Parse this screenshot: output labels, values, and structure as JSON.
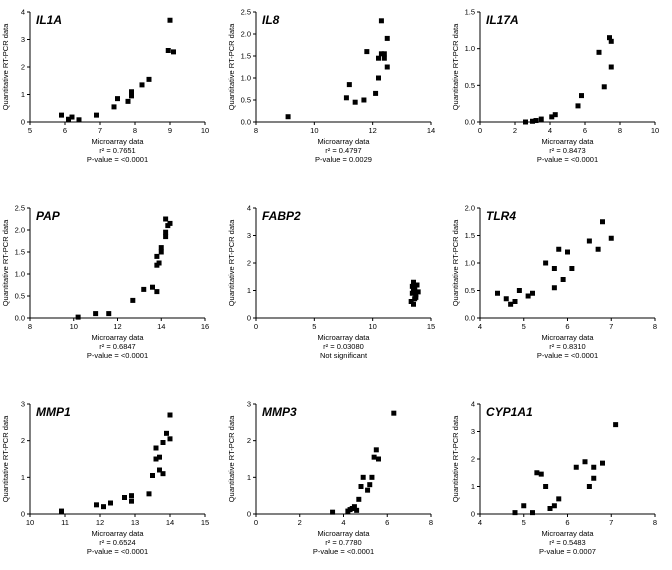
{
  "shared": {
    "ylabel": "Quantitative RT-PCR data",
    "xlabel": "Microarray data"
  },
  "chart_data": [
    {
      "type": "scatter",
      "title": "IL1A",
      "xlabel": "Microarray data",
      "ylabel": "Quantitative RT-PCR data",
      "xlim": [
        5,
        10
      ],
      "ylim": [
        0,
        4
      ],
      "xticks": [
        "5",
        "6",
        "7",
        "8",
        "9",
        "10"
      ],
      "yticks": [
        "0",
        "1",
        "2",
        "3",
        "4"
      ],
      "stats": [
        "r² = 0.7651",
        "P-value = <0.0001"
      ],
      "points": [
        [
          5.9,
          0.25
        ],
        [
          6.1,
          0.1
        ],
        [
          6.2,
          0.18
        ],
        [
          6.4,
          0.08
        ],
        [
          6.9,
          0.25
        ],
        [
          7.4,
          0.55
        ],
        [
          7.5,
          0.85
        ],
        [
          7.8,
          0.75
        ],
        [
          7.9,
          0.95
        ],
        [
          7.9,
          1.1
        ],
        [
          8.2,
          1.35
        ],
        [
          8.4,
          1.55
        ],
        [
          8.95,
          2.6
        ],
        [
          9.1,
          2.55
        ],
        [
          9.0,
          3.7
        ]
      ]
    },
    {
      "type": "scatter",
      "title": "IL8",
      "xlabel": "Microarray data",
      "ylabel": "Quantitative RT-PCR data",
      "xlim": [
        8,
        14
      ],
      "ylim": [
        0,
        2.5
      ],
      "xticks": [
        "8",
        "10",
        "12",
        "14"
      ],
      "yticks": [
        "0.0",
        "0.5",
        "1.0",
        "1.5",
        "2.0",
        "2.5"
      ],
      "stats": [
        "r² = 0.4797",
        "P-value = 0.0029"
      ],
      "points": [
        [
          9.1,
          0.12
        ],
        [
          11.1,
          0.55
        ],
        [
          11.2,
          0.85
        ],
        [
          11.4,
          0.45
        ],
        [
          11.7,
          0.5
        ],
        [
          11.8,
          1.6
        ],
        [
          12.1,
          0.65
        ],
        [
          12.2,
          1.0
        ],
        [
          12.2,
          1.45
        ],
        [
          12.3,
          1.55
        ],
        [
          12.4,
          1.55
        ],
        [
          12.4,
          1.45
        ],
        [
          12.5,
          1.9
        ],
        [
          12.3,
          2.3
        ],
        [
          12.5,
          1.25
        ]
      ]
    },
    {
      "type": "scatter",
      "title": "IL17A",
      "xlabel": "Microarray data",
      "ylabel": "Quantitative RT-PCR data",
      "xlim": [
        0,
        10
      ],
      "ylim": [
        0,
        1.5
      ],
      "xticks": [
        "0",
        "2",
        "4",
        "6",
        "8",
        "10"
      ],
      "yticks": [
        "0.0",
        "0.5",
        "1.0",
        "1.5"
      ],
      "stats": [
        "r² = 0.8473",
        "P-value = <0.0001"
      ],
      "points": [
        [
          2.6,
          0.0
        ],
        [
          3.0,
          0.01
        ],
        [
          3.2,
          0.02
        ],
        [
          3.5,
          0.04
        ],
        [
          4.1,
          0.07
        ],
        [
          4.3,
          0.1
        ],
        [
          5.6,
          0.22
        ],
        [
          5.8,
          0.36
        ],
        [
          6.8,
          0.95
        ],
        [
          7.1,
          0.48
        ],
        [
          7.5,
          0.75
        ],
        [
          7.4,
          1.15
        ],
        [
          7.5,
          1.1
        ]
      ]
    },
    {
      "type": "scatter",
      "title": "PAP",
      "xlabel": "Microarray data",
      "ylabel": "Quantitative RT-PCR data",
      "xlim": [
        8,
        16
      ],
      "ylim": [
        0,
        2.5
      ],
      "xticks": [
        "8",
        "10",
        "12",
        "14",
        "16"
      ],
      "yticks": [
        "0.0",
        "0.5",
        "1.0",
        "1.5",
        "2.0",
        "2.5"
      ],
      "stats": [
        "r² = 0.6847",
        "P-value = <0.0001"
      ],
      "points": [
        [
          10.2,
          0.02
        ],
        [
          11.0,
          0.1
        ],
        [
          11.6,
          0.1
        ],
        [
          12.7,
          0.4
        ],
        [
          13.2,
          0.65
        ],
        [
          13.6,
          0.7
        ],
        [
          13.8,
          0.6
        ],
        [
          13.8,
          1.2
        ],
        [
          13.9,
          1.25
        ],
        [
          13.8,
          1.4
        ],
        [
          14.0,
          1.5
        ],
        [
          14.0,
          1.6
        ],
        [
          14.2,
          1.85
        ],
        [
          14.2,
          1.95
        ],
        [
          14.3,
          2.1
        ],
        [
          14.4,
          2.15
        ],
        [
          14.2,
          2.25
        ]
      ]
    },
    {
      "type": "scatter",
      "title": "FABP2",
      "xlabel": "Microarray data",
      "ylabel": "Quantitative RT-PCR data",
      "xlim": [
        0,
        15
      ],
      "ylim": [
        0,
        4
      ],
      "xticks": [
        "0",
        "5",
        "10",
        "15"
      ],
      "yticks": [
        "0",
        "1",
        "2",
        "3",
        "4"
      ],
      "stats": [
        "r² = 0.03080",
        "Not significant"
      ],
      "points": [
        [
          13.3,
          0.6
        ],
        [
          13.4,
          0.9
        ],
        [
          13.5,
          1.3
        ],
        [
          13.6,
          1.1
        ],
        [
          13.5,
          0.5
        ],
        [
          13.7,
          0.75
        ],
        [
          13.8,
          1.2
        ],
        [
          13.5,
          1.0
        ],
        [
          13.6,
          0.7
        ],
        [
          13.4,
          1.15
        ],
        [
          13.7,
          0.85
        ],
        [
          13.9,
          0.95
        ],
        [
          13.6,
          1.05
        ]
      ]
    },
    {
      "type": "scatter",
      "title": "TLR4",
      "xlabel": "Microarray data",
      "ylabel": "Quantitative RT-PCR data",
      "xlim": [
        4,
        8
      ],
      "ylim": [
        0,
        2.0
      ],
      "xticks": [
        "4",
        "5",
        "6",
        "7",
        "8"
      ],
      "yticks": [
        "0.0",
        "0.5",
        "1.0",
        "1.5",
        "2.0"
      ],
      "stats": [
        "r² = 0.8310",
        "P-value = <0.0001"
      ],
      "points": [
        [
          4.4,
          0.45
        ],
        [
          4.6,
          0.35
        ],
        [
          4.7,
          0.25
        ],
        [
          4.8,
          0.3
        ],
        [
          4.9,
          0.5
        ],
        [
          5.1,
          0.4
        ],
        [
          5.2,
          0.45
        ],
        [
          5.5,
          1.0
        ],
        [
          5.7,
          0.55
        ],
        [
          5.7,
          0.9
        ],
        [
          5.8,
          1.25
        ],
        [
          5.9,
          0.7
        ],
        [
          6.0,
          1.2
        ],
        [
          6.1,
          0.9
        ],
        [
          6.5,
          1.4
        ],
        [
          6.7,
          1.25
        ],
        [
          6.8,
          1.75
        ],
        [
          7.0,
          1.45
        ]
      ]
    },
    {
      "type": "scatter",
      "title": "MMP1",
      "xlabel": "Microarray data",
      "ylabel": "Quantitative RT-PCR data",
      "xlim": [
        10,
        15
      ],
      "ylim": [
        0,
        3
      ],
      "xticks": [
        "10",
        "11",
        "12",
        "13",
        "14",
        "15"
      ],
      "yticks": [
        "0",
        "1",
        "2",
        "3"
      ],
      "stats": [
        "r² = 0.6524",
        "P-value = <0.0001"
      ],
      "points": [
        [
          10.9,
          0.08
        ],
        [
          11.9,
          0.25
        ],
        [
          12.1,
          0.2
        ],
        [
          12.3,
          0.3
        ],
        [
          12.7,
          0.45
        ],
        [
          12.9,
          0.35
        ],
        [
          12.9,
          0.5
        ],
        [
          13.4,
          0.55
        ],
        [
          13.5,
          1.05
        ],
        [
          13.6,
          1.5
        ],
        [
          13.6,
          1.8
        ],
        [
          13.7,
          1.2
        ],
        [
          13.7,
          1.55
        ],
        [
          13.8,
          1.1
        ],
        [
          13.8,
          1.95
        ],
        [
          13.9,
          2.2
        ],
        [
          14.0,
          2.05
        ],
        [
          14.0,
          2.7
        ]
      ]
    },
    {
      "type": "scatter",
      "title": "MMP3",
      "xlabel": "Microarray data",
      "ylabel": "Quantitative RT-PCR data",
      "xlim": [
        0,
        8
      ],
      "ylim": [
        0,
        3
      ],
      "xticks": [
        "0",
        "2",
        "4",
        "6",
        "8"
      ],
      "yticks": [
        "0",
        "1",
        "2",
        "3"
      ],
      "stats": [
        "r² = 0.7780",
        "P-value = <0.0001"
      ],
      "points": [
        [
          3.5,
          0.05
        ],
        [
          4.2,
          0.08
        ],
        [
          4.3,
          0.12
        ],
        [
          4.4,
          0.15
        ],
        [
          4.5,
          0.2
        ],
        [
          4.6,
          0.1
        ],
        [
          4.7,
          0.4
        ],
        [
          4.8,
          0.75
        ],
        [
          4.9,
          1.0
        ],
        [
          5.1,
          0.65
        ],
        [
          5.2,
          0.8
        ],
        [
          5.3,
          1.0
        ],
        [
          5.4,
          1.55
        ],
        [
          5.5,
          1.75
        ],
        [
          5.6,
          1.5
        ],
        [
          6.3,
          2.75
        ]
      ]
    },
    {
      "type": "scatter",
      "title": "CYP1A1",
      "xlabel": "Microarray data",
      "ylabel": "Quantitative RT-PCR data",
      "xlim": [
        4,
        8
      ],
      "ylim": [
        0,
        4
      ],
      "xticks": [
        "4",
        "5",
        "6",
        "7",
        "8"
      ],
      "yticks": [
        "0",
        "1",
        "2",
        "3",
        "4"
      ],
      "stats": [
        "r² = 0.5483",
        "P-value = 0.0007"
      ],
      "points": [
        [
          4.8,
          0.05
        ],
        [
          5.0,
          0.3
        ],
        [
          5.2,
          0.05
        ],
        [
          5.3,
          1.5
        ],
        [
          5.4,
          1.45
        ],
        [
          5.5,
          1.0
        ],
        [
          5.6,
          0.2
        ],
        [
          5.7,
          0.3
        ],
        [
          5.8,
          0.55
        ],
        [
          6.2,
          1.7
        ],
        [
          6.4,
          1.9
        ],
        [
          6.5,
          1.0
        ],
        [
          6.6,
          1.3
        ],
        [
          6.6,
          1.7
        ],
        [
          6.8,
          1.85
        ],
        [
          7.1,
          3.25
        ]
      ]
    }
  ]
}
